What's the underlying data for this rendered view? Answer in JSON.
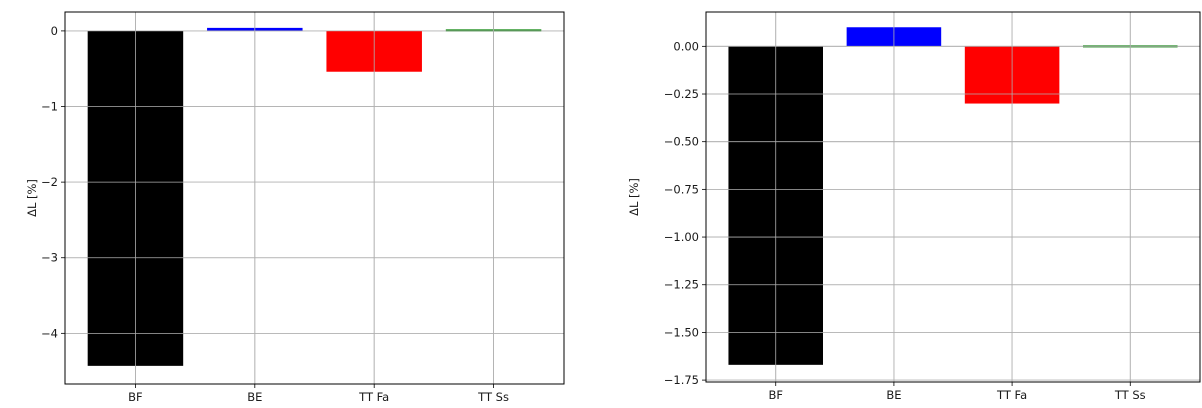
{
  "chart_data": [
    {
      "type": "bar",
      "categories": [
        "BF",
        "BE",
        "TT Fa",
        "TT Ss"
      ],
      "values": [
        -4.43,
        0.04,
        -0.54,
        0.02
      ],
      "colors": [
        "#000000",
        "#0000ff",
        "#ff0000",
        "#008000"
      ],
      "ylabel": "ΔL [%]",
      "ylim": [
        -4.67,
        0.25
      ],
      "yticks": [
        0,
        -1,
        -2,
        -3,
        -4
      ],
      "ytick_labels": [
        "0",
        "−1",
        "−2",
        "−3",
        "−4"
      ],
      "grid": true
    },
    {
      "type": "bar",
      "categories": [
        "BF",
        "BE",
        "TT Fa",
        "TT Ss"
      ],
      "values": [
        -1.67,
        0.1,
        -0.3,
        0.005
      ],
      "colors": [
        "#000000",
        "#0000ff",
        "#ff0000",
        "#008000"
      ],
      "ylabel": "ΔL [%]",
      "ylim": [
        -1.76,
        0.18
      ],
      "yticks": [
        0,
        -0.25,
        -0.5,
        -0.75,
        -1.0,
        -1.25,
        -1.5,
        -1.75
      ],
      "ytick_labels": [
        "0.00",
        "−0.25",
        "−0.50",
        "−0.75",
        "−1.00",
        "−1.25",
        "−1.50",
        "−1.75"
      ],
      "grid": true
    }
  ]
}
